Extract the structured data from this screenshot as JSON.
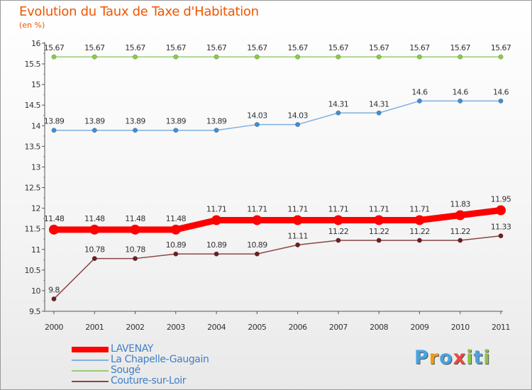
{
  "title": "Evolution du Taux de Taxe d'Habitation",
  "unit": "(en %)",
  "logo": {
    "text": "Proxiti",
    "letters": [
      "P",
      "r",
      "o",
      "x",
      "i",
      "t",
      "i"
    ],
    "colors": [
      "#4aa3df",
      "#f39c12",
      "#4aa3df",
      "#e74c3c",
      "#8bc34a",
      "#4aa3df",
      "#8bc34a"
    ]
  },
  "chart_data": {
    "type": "line",
    "title": "Evolution du Taux de Taxe d'Habitation",
    "ylabel": "(en %)",
    "xlabel": "",
    "ylim": [
      9.5,
      16
    ],
    "yticks": [
      "9.5",
      "10",
      "10.5",
      "11",
      "11.5",
      "12",
      "12.5",
      "13",
      "13.5",
      "14",
      "14.5",
      "15",
      "15.5",
      "16"
    ],
    "categories": [
      "2000",
      "2001",
      "2002",
      "2003",
      "2004",
      "2005",
      "2006",
      "2007",
      "2008",
      "2009",
      "2010",
      "2011"
    ],
    "series": [
      {
        "name": "Sougé",
        "color": "#88cc44",
        "line_color": "#99cc77",
        "width": 1.5,
        "marker": 3.2,
        "values": [
          15.67,
          15.67,
          15.67,
          15.67,
          15.67,
          15.67,
          15.67,
          15.67,
          15.67,
          15.67,
          15.67,
          15.67
        ],
        "labels": [
          "15.67",
          "15.67",
          "15.67",
          "15.67",
          "15.67",
          "15.67",
          "15.67",
          "15.67",
          "15.67",
          "15.67",
          "15.67",
          "15.67"
        ]
      },
      {
        "name": "La Chapelle-Gaugain",
        "color": "#3f8ed6",
        "line_color": "#7fb0e0",
        "width": 1.5,
        "marker": 3.2,
        "values": [
          13.89,
          13.89,
          13.89,
          13.89,
          13.89,
          14.03,
          14.03,
          14.31,
          14.31,
          14.6,
          14.6,
          14.6
        ],
        "labels": [
          "13.89",
          "13.89",
          "13.89",
          "13.89",
          "13.89",
          "14.03",
          "14.03",
          "14.31",
          "14.31",
          "14.6",
          "14.6",
          "14.6"
        ]
      },
      {
        "name": "LAVENAY",
        "color": "#ff0000",
        "line_color": "#ff0000",
        "width": 9,
        "marker": 7,
        "values": [
          11.48,
          11.48,
          11.48,
          11.48,
          11.71,
          11.71,
          11.71,
          11.71,
          11.71,
          11.71,
          11.83,
          11.95
        ],
        "labels": [
          "11.48",
          "11.48",
          "11.48",
          "11.48",
          "11.71",
          "11.71",
          "11.71",
          "11.71",
          "11.71",
          "11.71",
          "11.83",
          "11.95"
        ]
      },
      {
        "name": "Couture-sur-Loir",
        "color": "#6b1f1f",
        "line_color": "#8a4545",
        "width": 1.5,
        "marker": 3.2,
        "values": [
          9.8,
          10.78,
          10.78,
          10.89,
          10.89,
          10.89,
          11.11,
          11.22,
          11.22,
          11.22,
          11.22,
          11.33
        ],
        "labels": [
          "9.8",
          "10.78",
          "10.78",
          "10.89",
          "10.89",
          "10.89",
          "11.11",
          "11.22",
          "11.22",
          "11.22",
          "11.22",
          "11.33"
        ]
      }
    ],
    "legend": [
      {
        "name": "LAVENAY",
        "color": "#ff0000",
        "thick": true
      },
      {
        "name": "La Chapelle-Gaugain",
        "color": "#7fb0e0",
        "thick": false
      },
      {
        "name": "Sougé",
        "color": "#99cc77",
        "thick": false
      },
      {
        "name": "Couture-sur-Loir",
        "color": "#8a4545",
        "thick": false
      }
    ],
    "legend_position": "bottom-left",
    "grid": false
  }
}
